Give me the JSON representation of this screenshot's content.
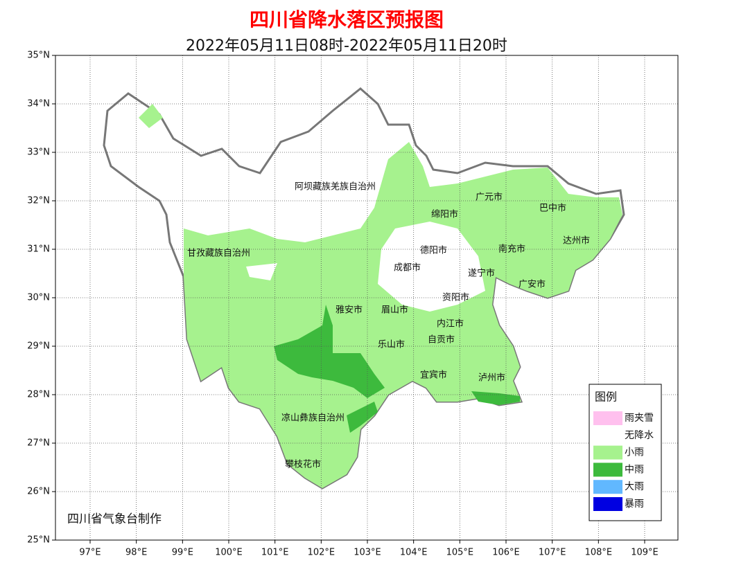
{
  "header": {
    "title": "四川省降水落区预报图",
    "subtitle": "2022年05月11日08时-2022年05月11日20时"
  },
  "map": {
    "xlim": [
      96.25,
      109.72
    ],
    "ylim": [
      25,
      35
    ],
    "xticks": [
      {
        "value": 97,
        "label": "97°E"
      },
      {
        "value": 98,
        "label": "98°E"
      },
      {
        "value": 99,
        "label": "99°E"
      },
      {
        "value": 100,
        "label": "100°E"
      },
      {
        "value": 101,
        "label": "101°E"
      },
      {
        "value": 102,
        "label": "102°E"
      },
      {
        "value": 103,
        "label": "103°E"
      },
      {
        "value": 104,
        "label": "104°E"
      },
      {
        "value": 105,
        "label": "105°E"
      },
      {
        "value": 106,
        "label": "106°E"
      },
      {
        "value": 107,
        "label": "107°E"
      },
      {
        "value": 108,
        "label": "108°E"
      },
      {
        "value": 109,
        "label": "109°E"
      }
    ],
    "yticks": [
      {
        "value": 25,
        "label": "25°N"
      },
      {
        "value": 26,
        "label": "26°N"
      },
      {
        "value": 27,
        "label": "27°N"
      },
      {
        "value": 28,
        "label": "28°N"
      },
      {
        "value": 29,
        "label": "29°N"
      },
      {
        "value": 30,
        "label": "30°N"
      },
      {
        "value": 31,
        "label": "31°N"
      },
      {
        "value": 32,
        "label": "32°N"
      },
      {
        "value": 33,
        "label": "33°N"
      },
      {
        "value": 34,
        "label": "34°N"
      },
      {
        "value": 35,
        "label": "35°N"
      }
    ],
    "grid": true,
    "places": [
      "阿坝藏族羌族自治州",
      "广元市",
      "巴中市",
      "绵阳市",
      "甘孜藏族自治州",
      "德阳市",
      "南充市",
      "达州市",
      "成都市",
      "遂宁市",
      "广安市",
      "资阳市",
      "雅安市",
      "眉山市",
      "内江市",
      "自贡市",
      "乐山市",
      "宜宾市",
      "泸州市",
      "凉山彝族自治州",
      "攀枝花市"
    ],
    "credit": "四川省气象台制作"
  },
  "legend": {
    "title": "图例",
    "items": [
      {
        "label": "雨夹雪",
        "color": "#ffc0ee"
      },
      {
        "label": "无降水",
        "color": "#ffffff"
      },
      {
        "label": "小雨",
        "color": "#a6f28e"
      },
      {
        "label": "中雨",
        "color": "#3dba3d"
      },
      {
        "label": "大雨",
        "color": "#61b8ff"
      },
      {
        "label": "暴雨",
        "color": "#0000e1"
      }
    ]
  }
}
